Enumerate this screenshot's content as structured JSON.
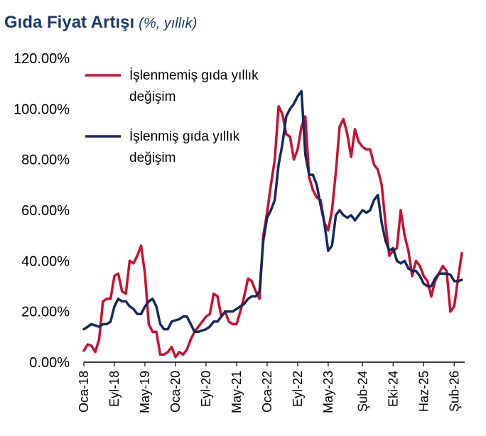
{
  "title": "Gıda Fiyat Artışı",
  "subtitle": "(%, yıllık)",
  "colors": {
    "title": "#1b3a6b",
    "series1": "#c8102e",
    "series2": "#14295e",
    "axis": "#000000"
  },
  "chart_data": {
    "type": "line",
    "title": "Gıda Fiyat Artışı",
    "subtitle": "(%, yıllık)",
    "xlabel": "",
    "ylabel": "",
    "ylim": [
      0,
      120
    ],
    "yticks": [
      "0.00%",
      "20.00%",
      "40.00%",
      "60.00%",
      "80.00%",
      "100.00%",
      "120.00%"
    ],
    "grid": false,
    "legend_position": "top-left",
    "x_ticks": [
      {
        "index": 0,
        "label": "Oca-18"
      },
      {
        "index": 8,
        "label": "Eyl-18"
      },
      {
        "index": 16,
        "label": "May-19"
      },
      {
        "index": 24,
        "label": "Oca-20"
      },
      {
        "index": 32,
        "label": "Eyl-20"
      },
      {
        "index": 40,
        "label": "May-21"
      },
      {
        "index": 48,
        "label": "Oca-22"
      },
      {
        "index": 56,
        "label": "Eyl-22"
      },
      {
        "index": 64,
        "label": "May-23"
      },
      {
        "index": 73,
        "label": "Şub-24"
      },
      {
        "index": 81,
        "label": "Eki-24"
      },
      {
        "index": 89,
        "label": "Haz-25"
      },
      {
        "index": 97,
        "label": "Şub-26"
      }
    ],
    "series": [
      {
        "name": "İşlenmemiş gıda yıllık değişim",
        "color": "#c8102e",
        "values": [
          4.5,
          7,
          6.5,
          4,
          9,
          24,
          25,
          25,
          34,
          35,
          28,
          27,
          40,
          39,
          42,
          46,
          35,
          15,
          12,
          12,
          3,
          3,
          4,
          6,
          2,
          4,
          3,
          5,
          9,
          12,
          14,
          16,
          18,
          19,
          27,
          26,
          18,
          20,
          16,
          15,
          15,
          20,
          26,
          33,
          32,
          28,
          25,
          50,
          59,
          70,
          80,
          101,
          98,
          90,
          89,
          80,
          84,
          93,
          97,
          73,
          68,
          65,
          64,
          55,
          52,
          60,
          75,
          93,
          96,
          90,
          81,
          92,
          87,
          85,
          84,
          84,
          78,
          76,
          70,
          55,
          42,
          44,
          45,
          60,
          50,
          44,
          34,
          40,
          38,
          34,
          32,
          26,
          32,
          35,
          38,
          36,
          20,
          22,
          33,
          43
        ]
      },
      {
        "name": "İşlenmiş gıda yıllık değişim",
        "color": "#14295e",
        "values": [
          13,
          14,
          15,
          14.5,
          14,
          15,
          15,
          16,
          22,
          25,
          24,
          24,
          22,
          21,
          19,
          19,
          22,
          24,
          25,
          22,
          15,
          13,
          13,
          16,
          16.5,
          17,
          18,
          18,
          15,
          12,
          12,
          12.5,
          13,
          14,
          16,
          16,
          18,
          20,
          20,
          20,
          21,
          22,
          23,
          25,
          26,
          26,
          28,
          48,
          57,
          60,
          64,
          78,
          86,
          97,
          100,
          102,
          105,
          107,
          82,
          74,
          74,
          70,
          62,
          55,
          44,
          46,
          58,
          60,
          58,
          57,
          58,
          56,
          58,
          60,
          59,
          60,
          64,
          66,
          55,
          48,
          44,
          45,
          40,
          39,
          40,
          37,
          36,
          36,
          34,
          31,
          30,
          30,
          33,
          35,
          35,
          35,
          34.5,
          32,
          32,
          32.5
        ]
      }
    ]
  }
}
